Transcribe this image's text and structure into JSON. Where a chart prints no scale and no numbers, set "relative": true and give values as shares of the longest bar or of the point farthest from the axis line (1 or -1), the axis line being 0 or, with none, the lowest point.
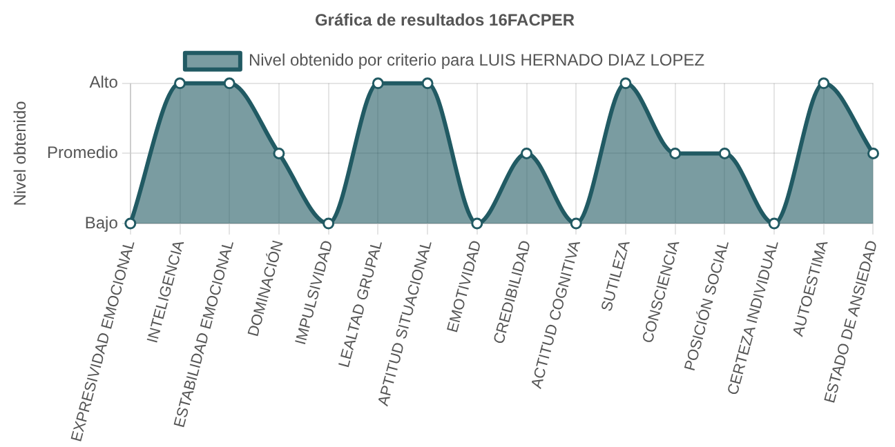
{
  "chart_data": {
    "type": "area",
    "title": "Gráfica de resultados 16FACPER",
    "ylabel": "Nivel obtenido",
    "categories": [
      "EXPRESIVIDAD EMOCIONAL",
      "INTELIGENCIA",
      "ESTABILIDAD EMOCIONAL",
      "DOMINACIÓN",
      "IMPULSIVIDAD",
      "LEALTAD GRUPAL",
      "APTITUD SITUACIONAL",
      "EMOTIVIDAD",
      "CREDIBILIDAD",
      "ACTITUD COGNITIVA",
      "SUTILEZA",
      "CONSCIENCIA",
      "POSICIÓN SOCIAL",
      "CERTEZA INDIVIDUAL",
      "AUTOESTIMA",
      "ESTADO DE ANSIEDAD"
    ],
    "series": [
      {
        "name": "Nivel obtenido por criterio para LUIS HERNADO DIAZ LOPEZ",
        "color": "#215a63",
        "values": [
          0,
          1,
          1,
          0.5,
          0,
          1,
          1,
          0,
          0.5,
          0,
          1,
          0.5,
          0.5,
          0,
          1,
          0.5
        ]
      }
    ],
    "relative": true,
    "annotations": [
      "Bajo",
      "Promedio",
      "Alto"
    ],
    "grid": true,
    "legend": "top",
    "marker": "circle"
  }
}
